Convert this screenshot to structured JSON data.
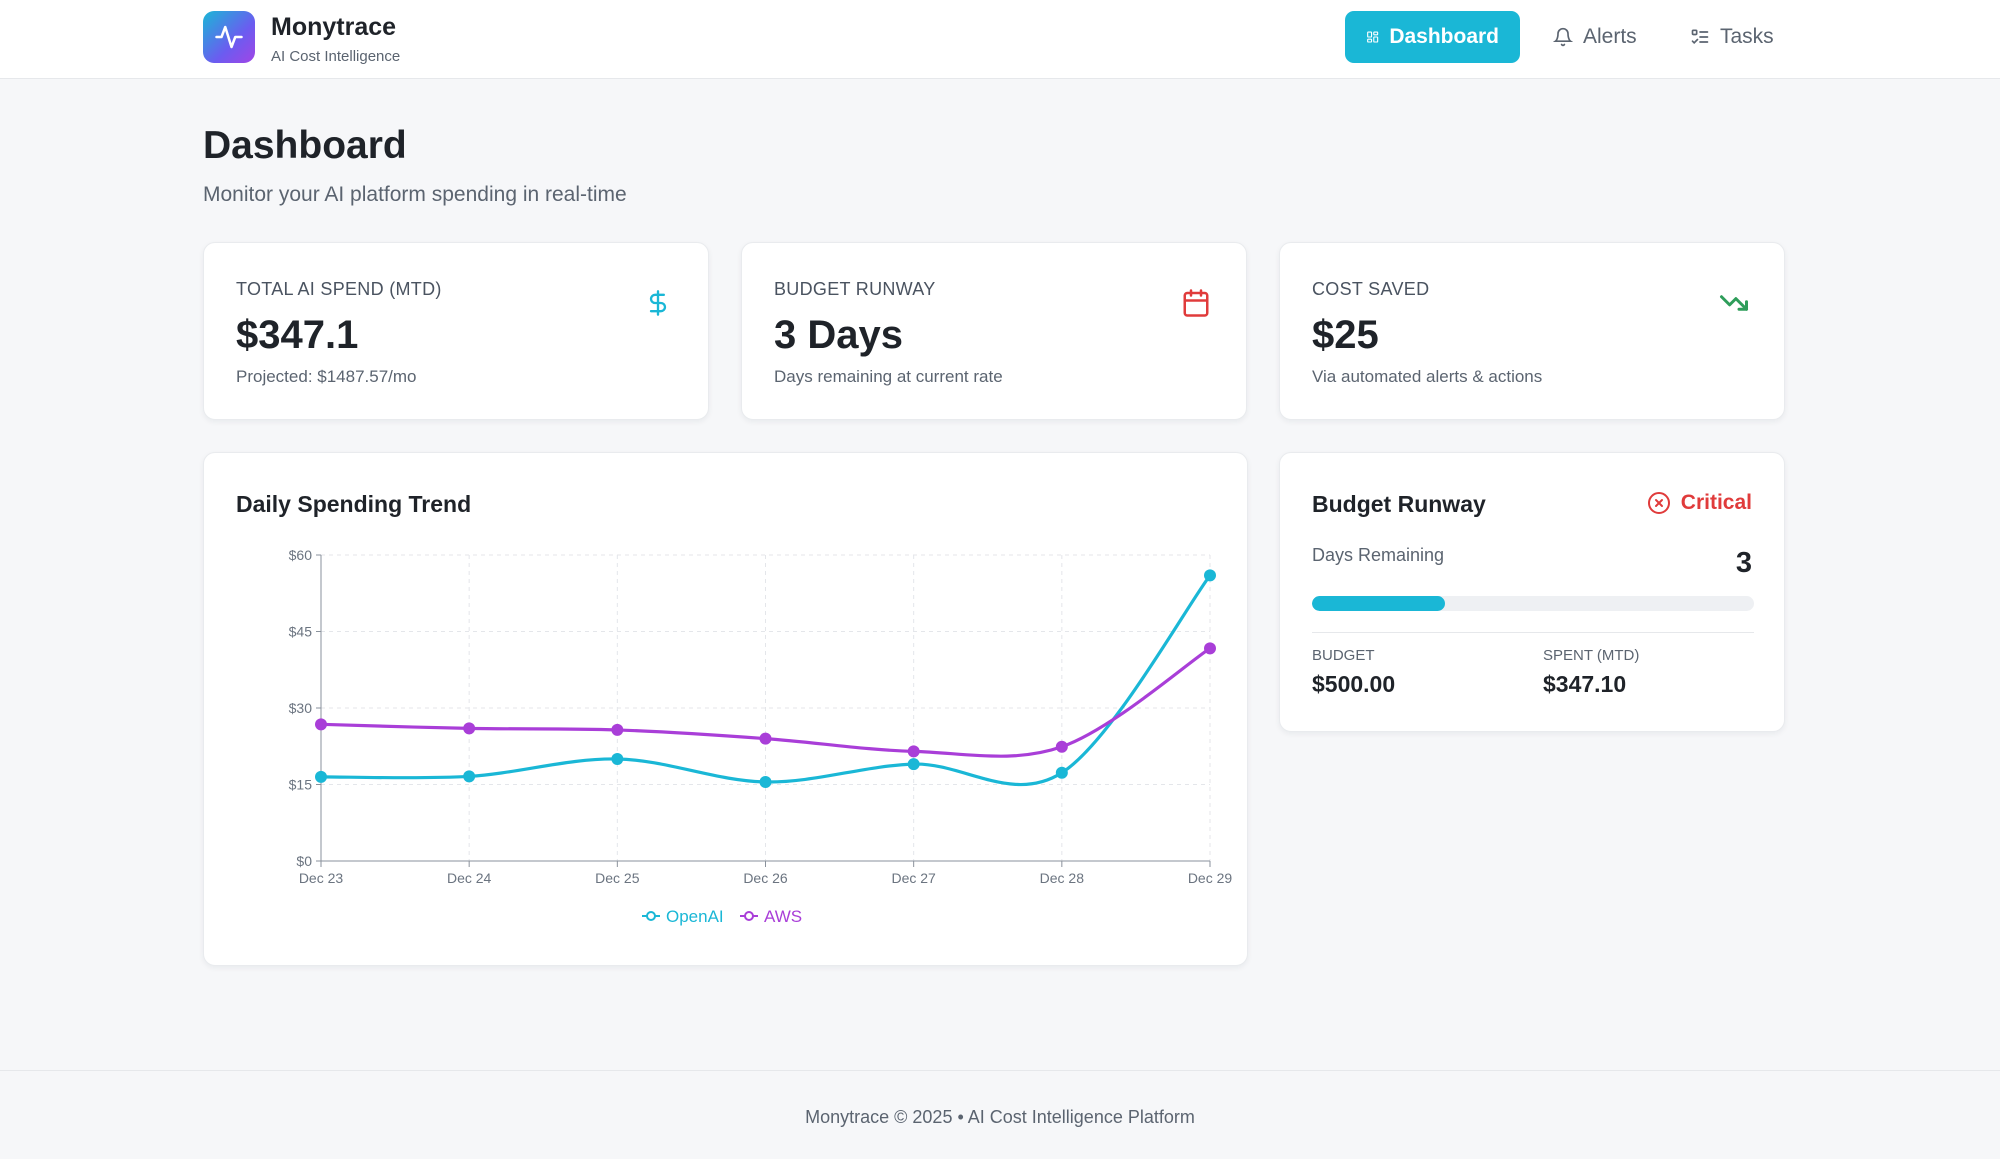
{
  "header": {
    "brand_name": "Monytrace",
    "brand_sub": "AI Cost Intelligence",
    "nav": [
      {
        "label": "Dashboard",
        "icon": "grid-icon",
        "active": true
      },
      {
        "label": "Alerts",
        "icon": "bell-icon",
        "active": false
      },
      {
        "label": "Tasks",
        "icon": "list-check-icon",
        "active": false
      }
    ]
  },
  "page": {
    "title": "Dashboard",
    "subtitle": "Monitor your AI platform spending in real-time"
  },
  "stats": [
    {
      "label": "TOTAL AI SPEND (MTD)",
      "value": "$347.1",
      "note": "Projected: $1487.57/mo",
      "icon": "dollar-icon",
      "icon_color": "#1ab7d6"
    },
    {
      "label": "BUDGET RUNWAY",
      "value": "3 Days",
      "note": "Days remaining at current rate",
      "icon": "calendar-icon",
      "icon_color": "#e03b3b"
    },
    {
      "label": "COST SAVED",
      "value": "$25",
      "note": "Via automated alerts & actions",
      "icon": "trending-down-icon",
      "icon_color": "#2e9d5a"
    }
  ],
  "trend": {
    "title": "Daily Spending Trend"
  },
  "chart_data": {
    "type": "line",
    "x": [
      "Dec 23",
      "Dec 24",
      "Dec 25",
      "Dec 26",
      "Dec 27",
      "Dec 28",
      "Dec 29"
    ],
    "y_ticks": [
      "$0",
      "$15",
      "$30",
      "$45",
      "$60"
    ],
    "ylim": [
      0,
      60
    ],
    "grid": true,
    "legend": "bottom-center",
    "series": [
      {
        "name": "OpenAI",
        "color": "#1ab7d6",
        "values": [
          16.5,
          16.6,
          20.0,
          15.5,
          19.0,
          17.3,
          56.0
        ]
      },
      {
        "name": "AWS",
        "color": "#a93ed8",
        "values": [
          26.8,
          26.0,
          25.7,
          24.0,
          21.5,
          22.4,
          41.7
        ]
      }
    ]
  },
  "runway": {
    "title": "Budget Runway",
    "status": "Critical",
    "status_color": "#e03b3b",
    "days_label": "Days Remaining",
    "days_value": "3",
    "progress_fraction": 0.3,
    "budget_label": "BUDGET",
    "budget_value": "$500.00",
    "spent_label": "SPENT (MTD)",
    "spent_value": "$347.10"
  },
  "footer": {
    "text": "Monytrace © 2025 • AI Cost Intelligence Platform"
  }
}
